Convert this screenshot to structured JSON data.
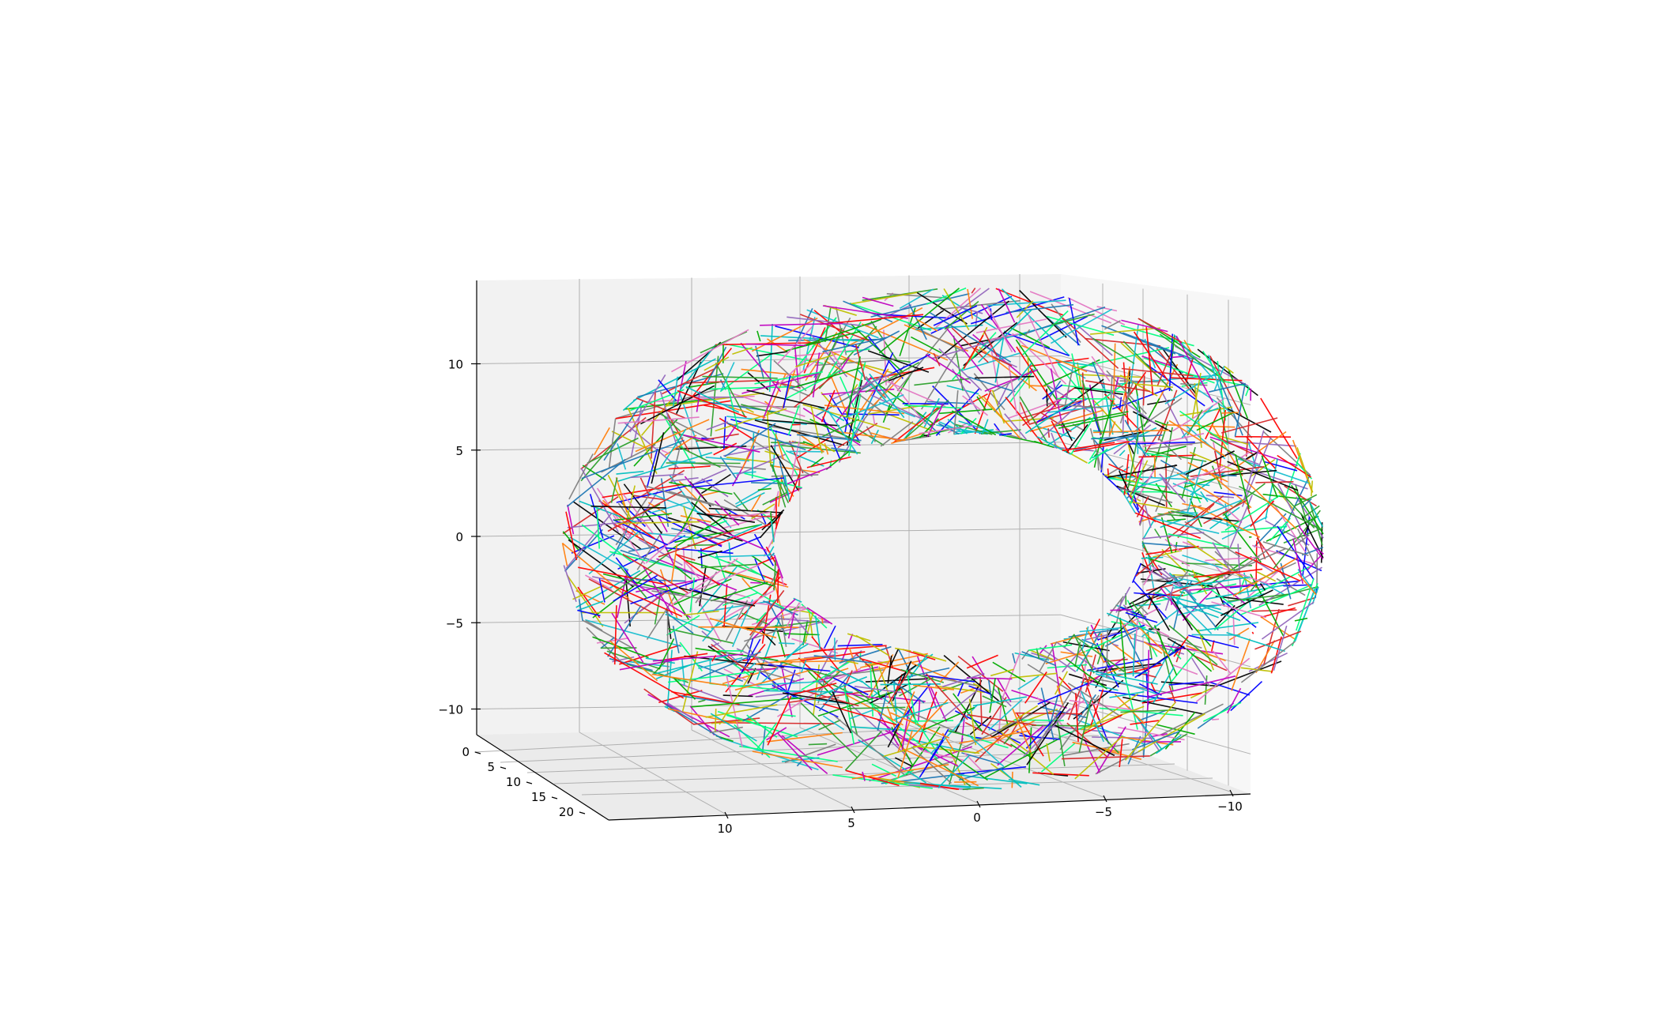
{
  "chart_data": {
    "type": "3d-wireframe",
    "title": "",
    "xlabel": "",
    "ylabel": "",
    "zlabel": "",
    "grid": true,
    "pane_colors": [
      "#f2f2f2",
      "#ebebeb",
      "#f7f7f7"
    ],
    "axes": {
      "x": {
        "range": [
          -11,
          14
        ],
        "ticks": [
          10,
          5,
          0,
          -5,
          -10
        ],
        "tick_labels": [
          "10",
          "5",
          "0",
          "−5",
          "−10"
        ]
      },
      "y": {
        "range": [
          -1,
          21
        ],
        "ticks": [
          0,
          5,
          10,
          15,
          20
        ],
        "tick_labels": [
          "0",
          "5",
          "10",
          "15",
          "20"
        ]
      },
      "z": {
        "range": [
          -12,
          14
        ],
        "ticks": [
          10,
          5,
          0,
          -5,
          -10
        ],
        "tick_labels": [
          "10",
          "5",
          "0",
          "−5",
          "−10"
        ]
      }
    },
    "surface": {
      "shape": "torus-like tube",
      "center_x": 0,
      "center_z": 0,
      "hole_half_width": 7.5,
      "hole_half_height": 6,
      "outer_half_width": 12.5,
      "outer_half_height": 13,
      "depth_range": [
        0,
        20
      ]
    },
    "line_colors": [
      "#0000ff",
      "#ff0000",
      "#00aa00",
      "#00bfbf",
      "#bf00bf",
      "#bfbf00",
      "#000000",
      "#1f77b4",
      "#ff7f0e",
      "#2ca02c",
      "#d62728",
      "#9467bd",
      "#e377c2",
      "#17becf",
      "#7f7f7f",
      "#00ff7f"
    ]
  }
}
